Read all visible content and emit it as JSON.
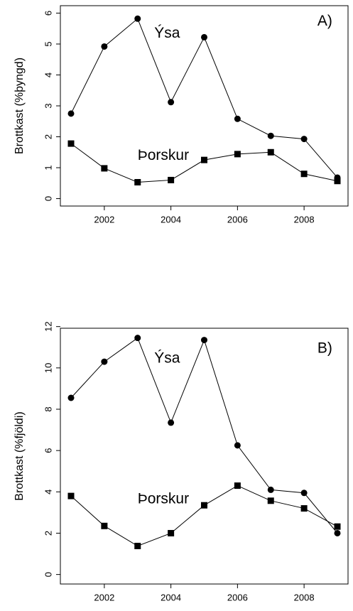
{
  "chart_data": [
    {
      "type": "line",
      "ylabel": "Brottkast (%þyngd)",
      "x": [
        2001,
        2002,
        2003,
        2004,
        2005,
        2006,
        2007,
        2008,
        2009
      ],
      "xlim": [
        2000.68,
        2009.32
      ],
      "xticks": [
        2002,
        2004,
        2006,
        2008
      ],
      "ylim": [
        -0.24,
        6.24
      ],
      "yticks": [
        0,
        1,
        2,
        3,
        4,
        5,
        6
      ],
      "annotations": [
        "Ýsa",
        "Þorskur",
        "A)"
      ],
      "series": [
        {
          "name": "Ýsa",
          "color": "#000000",
          "marker": "circle",
          "values": [
            2.75,
            4.92,
            5.82,
            3.12,
            5.22,
            2.58,
            2.03,
            1.93,
            0.68
          ]
        },
        {
          "name": "Þorskur",
          "color": "#000000",
          "marker": "square",
          "values": [
            1.78,
            0.98,
            0.53,
            0.6,
            1.25,
            1.44,
            1.5,
            0.8,
            0.57
          ]
        }
      ]
    },
    {
      "type": "line",
      "ylabel": "Brottkast (%fjöldi)",
      "x": [
        2001,
        2002,
        2003,
        2004,
        2005,
        2006,
        2007,
        2008,
        2009
      ],
      "xlim": [
        2000.68,
        2009.32
      ],
      "xticks": [
        2002,
        2004,
        2006,
        2008
      ],
      "ylim": [
        -0.46,
        11.92
      ],
      "yticks": [
        0,
        2,
        4,
        6,
        8,
        10,
        12
      ],
      "annotations": [
        "Ýsa",
        "Þorskur",
        "B)"
      ],
      "series": [
        {
          "name": "Ýsa",
          "color": "#000000",
          "marker": "circle",
          "values": [
            8.55,
            10.3,
            11.45,
            7.35,
            11.35,
            6.25,
            4.1,
            3.95,
            2.0
          ]
        },
        {
          "name": "Þorskur",
          "color": "#000000",
          "marker": "square",
          "values": [
            3.8,
            2.35,
            1.38,
            2.0,
            3.35,
            4.3,
            3.57,
            3.2,
            2.32
          ]
        }
      ]
    }
  ]
}
